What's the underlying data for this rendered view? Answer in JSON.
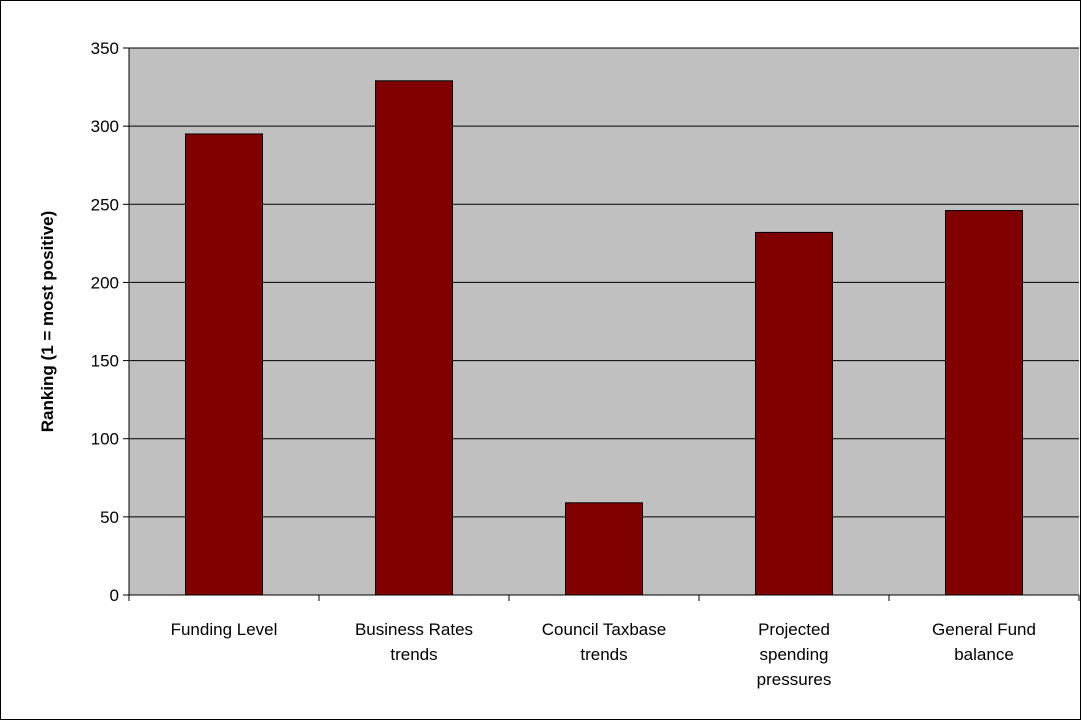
{
  "chart_data": {
    "type": "bar",
    "categories": [
      "Funding Level",
      "Business Rates trends",
      "Council Taxbase trends",
      "Projected spending pressures",
      "General Fund balance"
    ],
    "category_lines": [
      [
        "Funding Level"
      ],
      [
        "Business Rates",
        "trends"
      ],
      [
        "Council Taxbase",
        "trends"
      ],
      [
        "Projected",
        "spending",
        "pressures"
      ],
      [
        "General Fund",
        "balance"
      ]
    ],
    "values": [
      295,
      329,
      59,
      232,
      246
    ],
    "title": "",
    "xlabel": "",
    "ylabel": "Ranking (1 = most positive)",
    "ylim": [
      0,
      350
    ],
    "yticks": [
      0,
      50,
      100,
      150,
      200,
      250,
      300,
      350
    ],
    "grid": true,
    "legend": "none",
    "colors": {
      "bar": "#800000",
      "plot_background": "#c0c0c0",
      "gridline": "#000000",
      "page_background": "#ffffff"
    }
  }
}
